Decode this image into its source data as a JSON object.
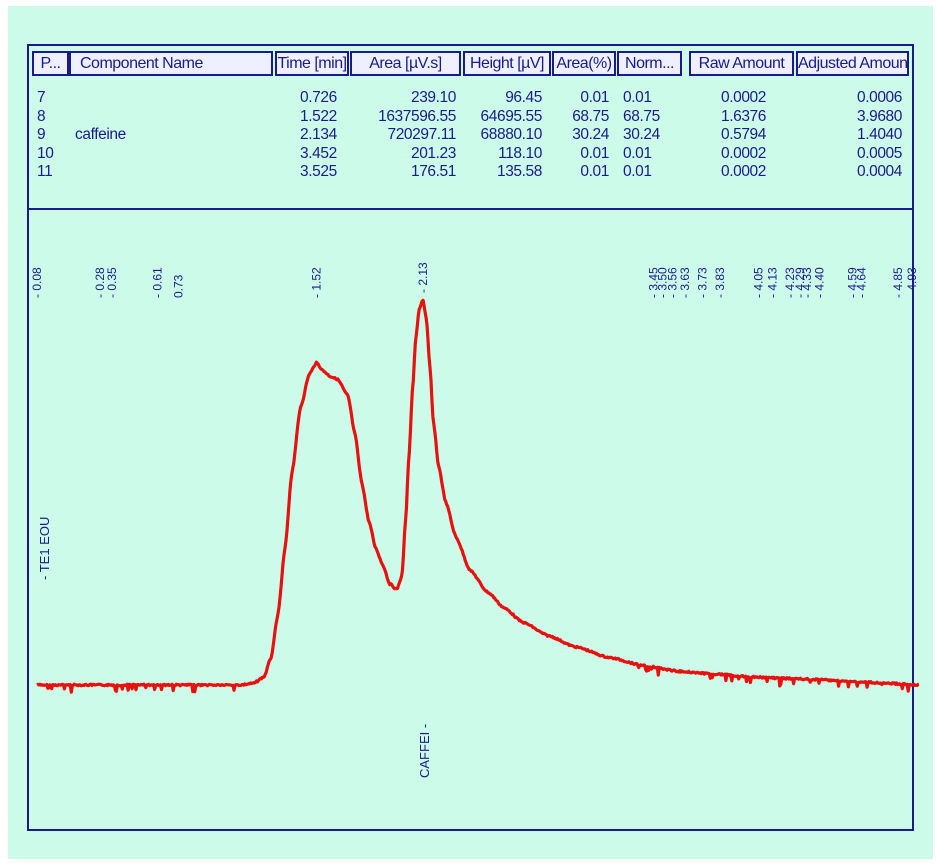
{
  "table": {
    "headers": [
      "P...",
      "Component Name",
      "Time [min]",
      "Area [µV.s]",
      "Height [µV]",
      "Area(%)",
      "Norm...",
      "Raw Amount",
      "Adjusted Amount"
    ],
    "rows": [
      {
        "peak": "7",
        "name": "",
        "time": "0.726",
        "area": "239.10",
        "height": "96.45",
        "area_pct": "0.01",
        "norm": "0.01",
        "raw": "0.0002",
        "adjusted": "0.0006"
      },
      {
        "peak": "8",
        "name": "",
        "time": "1.522",
        "area": "1637596.55",
        "height": "64695.55",
        "area_pct": "68.75",
        "norm": "68.75",
        "raw": "1.6376",
        "adjusted": "3.9680"
      },
      {
        "peak": "9",
        "name": "caffeine",
        "time": "2.134",
        "area": "720297.11",
        "height": "68880.10",
        "area_pct": "30.24",
        "norm": "30.24",
        "raw": "0.5794",
        "adjusted": "1.4040"
      },
      {
        "peak": "10",
        "name": "",
        "time": "3.452",
        "area": "201.23",
        "height": "118.10",
        "area_pct": "0.01",
        "norm": "0.01",
        "raw": "0.0002",
        "adjusted": "0.0005"
      },
      {
        "peak": "11",
        "name": "",
        "time": "3.525",
        "area": "176.51",
        "height": "135.58",
        "area_pct": "0.01",
        "norm": "0.01",
        "raw": "0.0002",
        "adjusted": "0.0004"
      }
    ]
  },
  "chart_data": {
    "type": "line",
    "title": "",
    "xlabel": "",
    "ylabel": "",
    "xlim": [
      -0.08,
      4.97
    ],
    "ylim": [
      -7000,
      76000
    ],
    "baseline": 0,
    "series": [
      {
        "name": "",
        "color": "#e8110f",
        "x": [
          -0.08,
          0.2,
          0.5,
          1.0,
          1.08,
          1.16,
          1.22,
          1.26,
          1.3,
          1.34,
          1.38,
          1.43,
          1.48,
          1.52,
          1.56,
          1.6,
          1.64,
          1.7,
          1.74,
          1.78,
          1.82,
          1.86,
          1.9,
          1.94,
          1.98,
          2.01,
          2.03,
          2.05,
          2.07,
          2.09,
          2.11,
          2.13,
          2.15,
          2.17,
          2.19,
          2.22,
          2.26,
          2.32,
          2.4,
          2.5,
          2.6,
          2.7,
          2.85,
          3.0,
          3.2,
          3.4,
          3.6,
          3.8,
          4.0,
          4.2,
          4.4,
          4.6,
          4.8,
          4.97
        ],
        "y": [
          0,
          0,
          0,
          0,
          0,
          300,
          1500,
          5000,
          13000,
          25000,
          39000,
          51000,
          57000,
          59000,
          57500,
          56500,
          56000,
          53000,
          46000,
          37000,
          30000,
          25000,
          22000,
          18500,
          17500,
          20000,
          30000,
          42000,
          54000,
          64000,
          69000,
          70500,
          67000,
          58000,
          48000,
          40000,
          33500,
          27000,
          21000,
          17000,
          14000,
          11500,
          9000,
          7000,
          5000,
          3500,
          2500,
          2000,
          1500,
          1200,
          1000,
          600,
          300,
          0
        ]
      }
    ],
    "peak_labels": [
      {
        "x": -0.08,
        "text": "- 0.08"
      },
      {
        "x": 0.28,
        "text": "- 0.28"
      },
      {
        "x": 0.35,
        "text": "- 0.35"
      },
      {
        "x": 0.61,
        "text": "- 0.61"
      },
      {
        "x": 0.73,
        "text": "0.73"
      },
      {
        "x": 1.52,
        "text": "- 1.52"
      },
      {
        "x": 2.13,
        "text": "- 2.13"
      },
      {
        "x": 3.45,
        "text": "- 3.45"
      },
      {
        "x": 3.5,
        "text": "- 3.50"
      },
      {
        "x": 3.56,
        "text": "- 3.56"
      },
      {
        "x": 3.63,
        "text": "- 3.63"
      },
      {
        "x": 3.73,
        "text": "- 3.73"
      },
      {
        "x": 3.83,
        "text": "- 3.83"
      },
      {
        "x": 4.05,
        "text": "- 4.05"
      },
      {
        "x": 4.13,
        "text": "- 4.13"
      },
      {
        "x": 4.23,
        "text": "- 4.23"
      },
      {
        "x": 4.29,
        "text": "- 4.29"
      },
      {
        "x": 4.33,
        "text": "- 4.33"
      },
      {
        "x": 4.4,
        "text": "- 4.40"
      },
      {
        "x": 4.59,
        "text": "- 4.59"
      },
      {
        "x": 4.64,
        "text": "- 4.64"
      },
      {
        "x": 4.85,
        "text": "- 4.85"
      },
      {
        "x": 4.93,
        "text": "- 4.93"
      }
    ],
    "annotations": [
      {
        "x": -0.08,
        "text": "- TE1 EOU"
      },
      {
        "x": 2.13,
        "text": "CAFFEI -"
      }
    ]
  }
}
